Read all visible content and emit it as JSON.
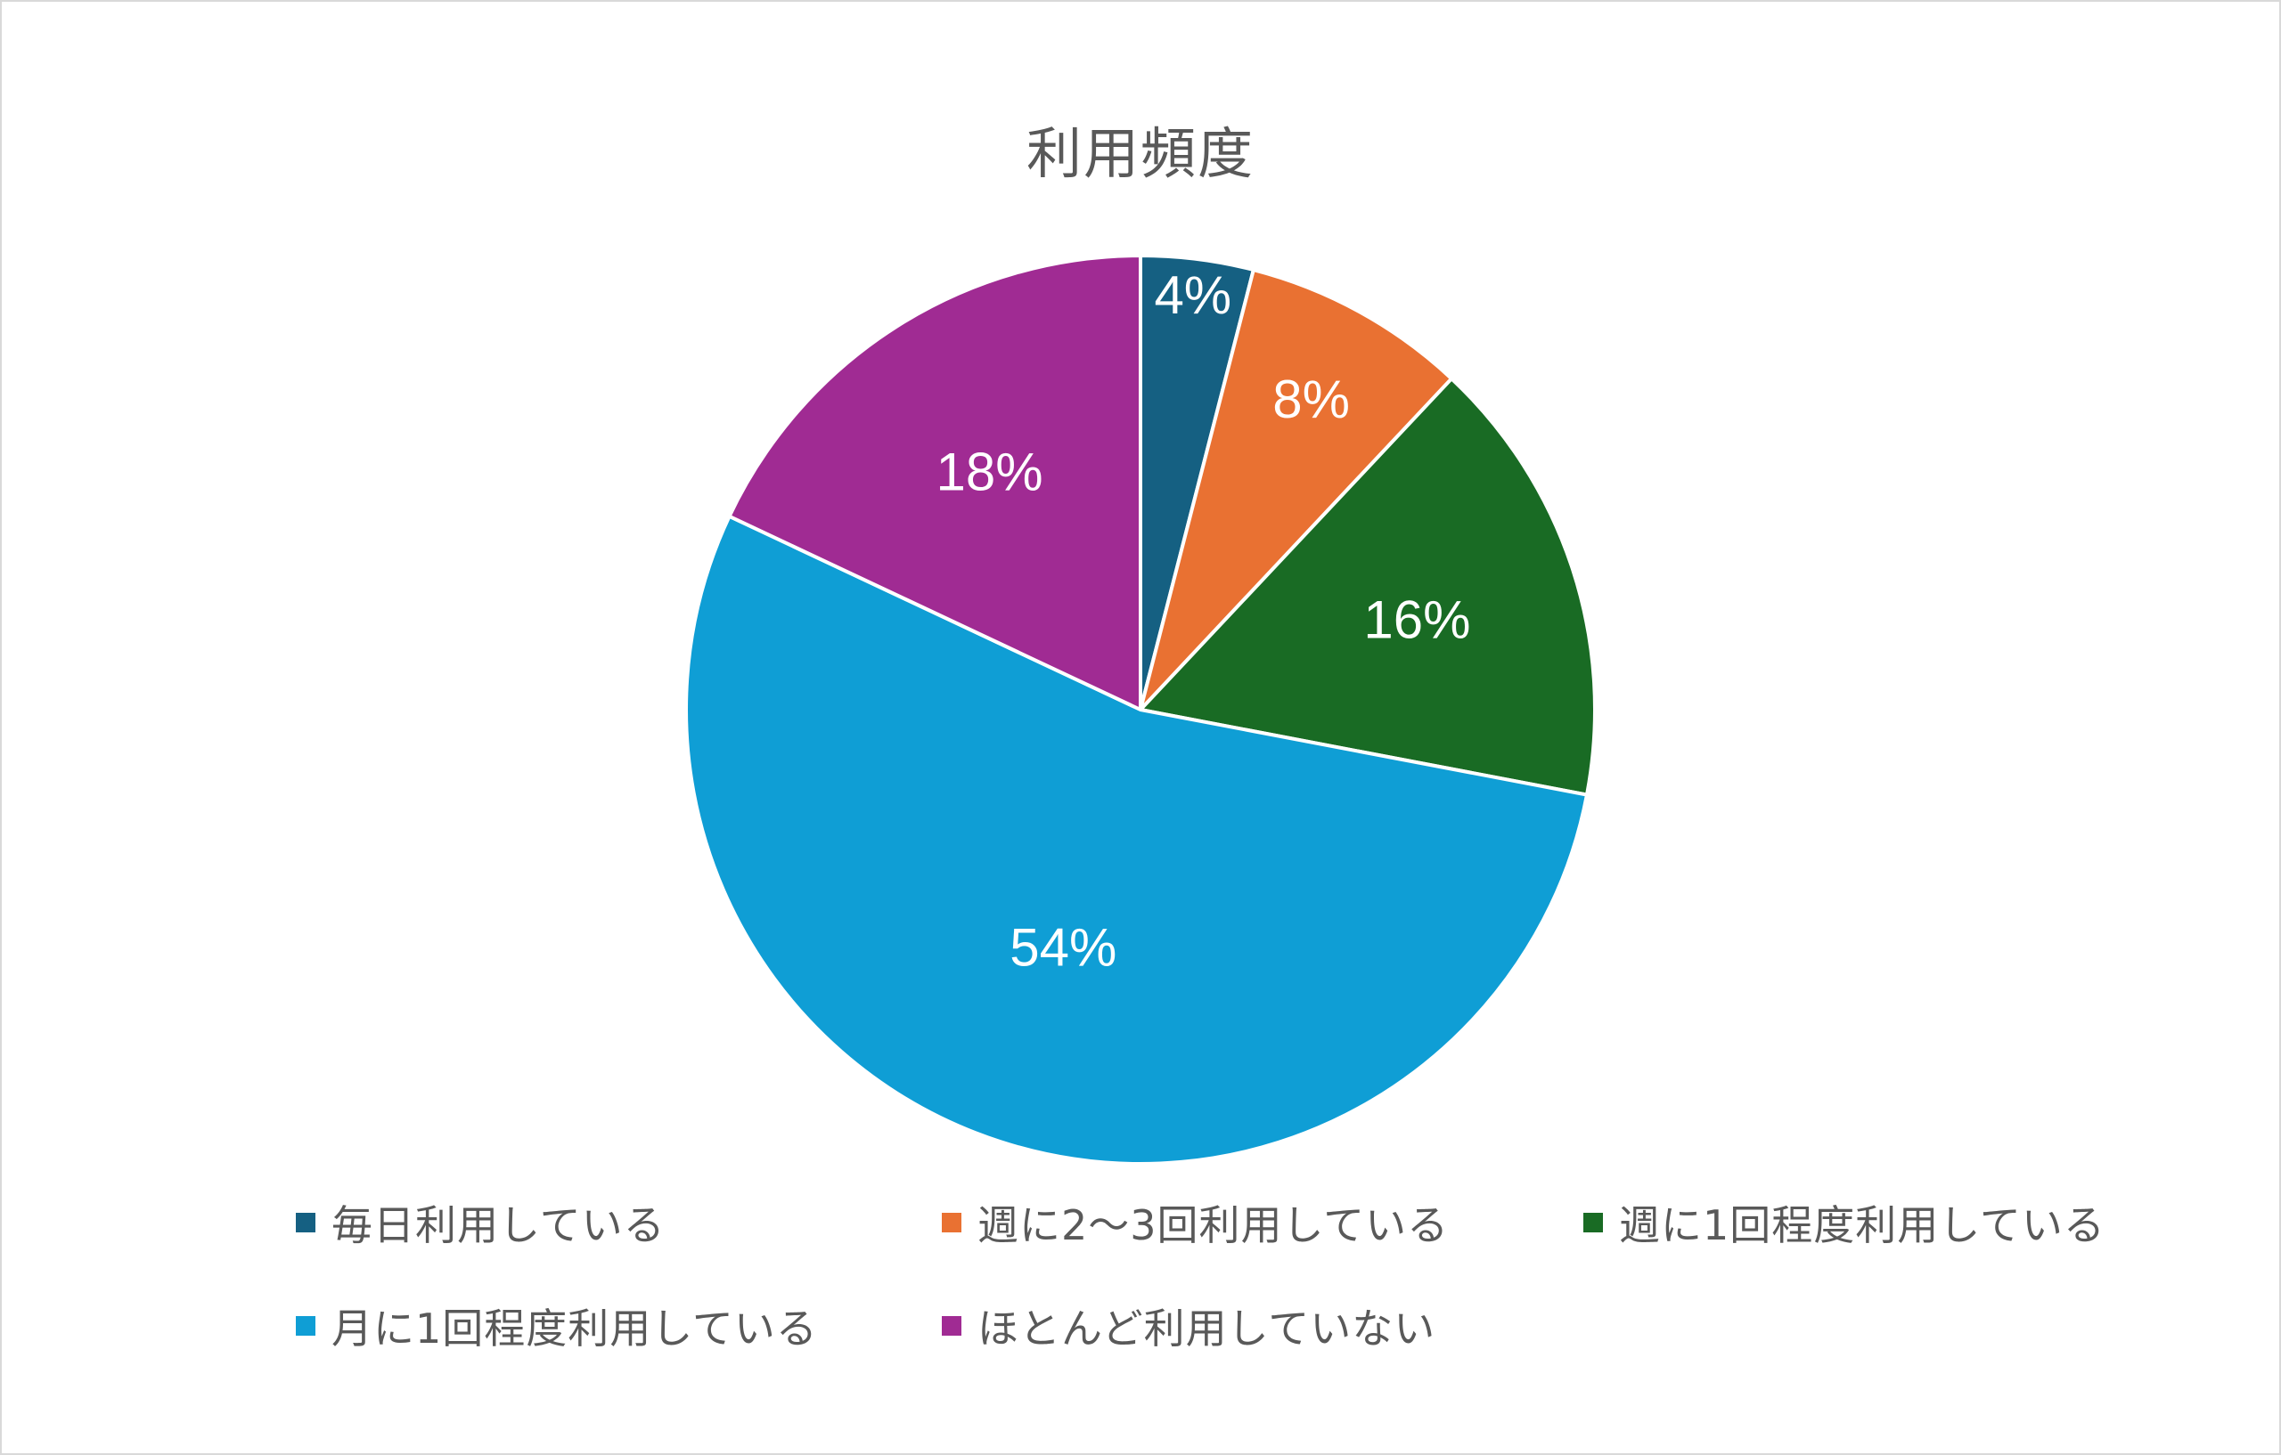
{
  "chart_data": {
    "type": "pie",
    "title": "利用頻度",
    "categories": [
      "毎日利用している",
      "週に2〜3回利用している",
      "週に1回程度利用している",
      "月に1回程度利用している",
      "ほとんど利用していない"
    ],
    "values": [
      4,
      8,
      16,
      54,
      18
    ],
    "data_labels": [
      "4%",
      "8%",
      "16%",
      "54%",
      "18%"
    ],
    "colors": [
      "#156082",
      "#e97132",
      "#196b24",
      "#0f9ed5",
      "#a02b93"
    ],
    "legend_position": "bottom",
    "start_angle": "12 o'clock, clockwise"
  }
}
